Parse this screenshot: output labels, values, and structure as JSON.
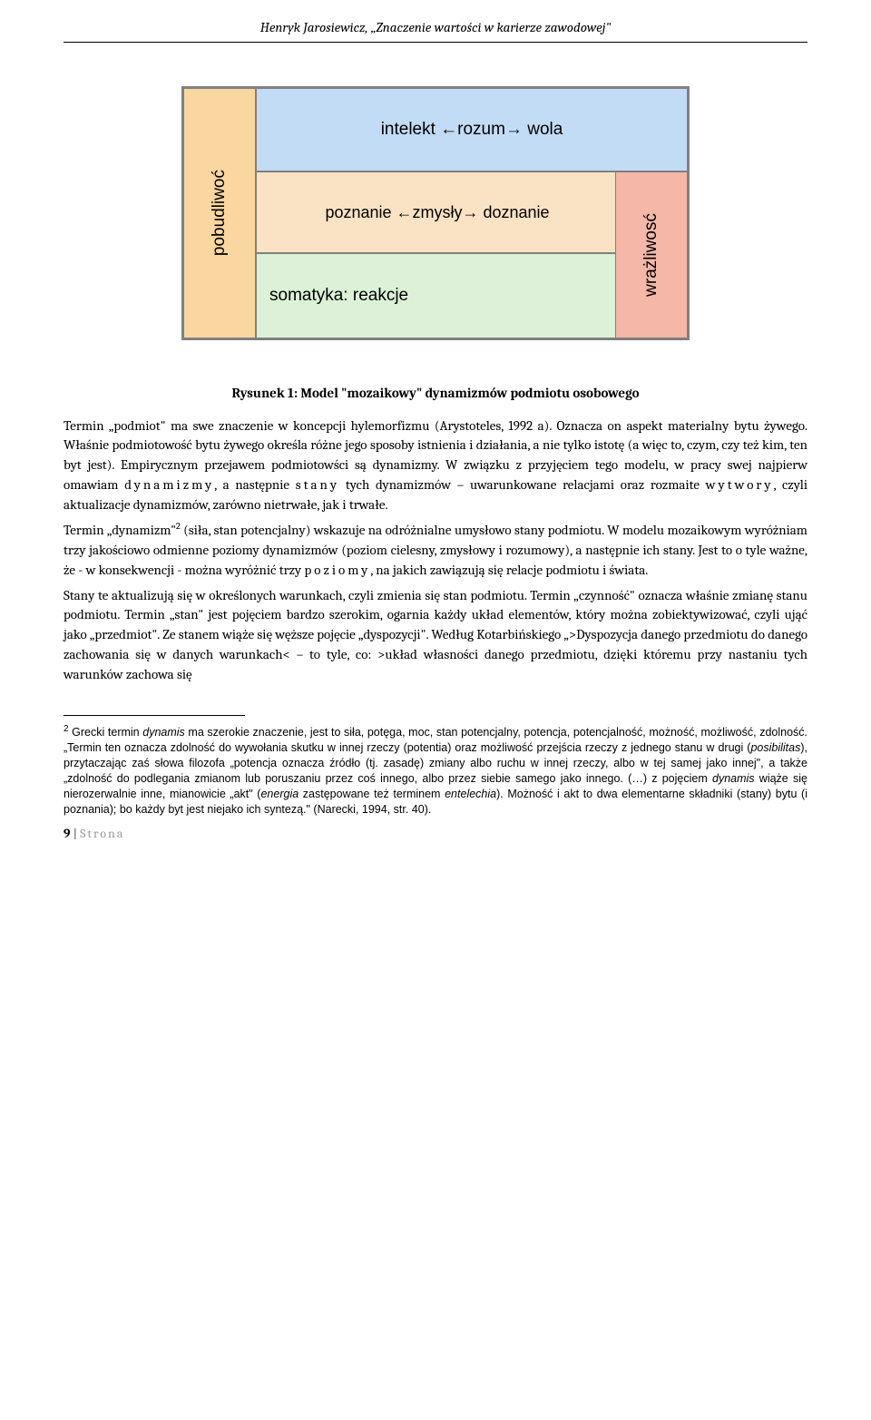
{
  "header": "Henryk Jarosiewicz, „Znaczenie wartości w karierze zawodowej\"",
  "diagram": {
    "boxes": {
      "left": {
        "text": "pobudliwoć",
        "bg": "#fad7a0",
        "vertical": true
      },
      "top": {
        "text": "intelekt ←rozum→ wola",
        "bg": "#c3dcf5"
      },
      "mid": {
        "text": "poznanie ←zmysły→ doznanie",
        "bg": "#fae2c4"
      },
      "bottom": {
        "text": "somatyka: reakcje",
        "bg": "#dcf1d7"
      },
      "right": {
        "text": "wrażliwosć",
        "bg": "#f5b7a8",
        "vertical": true
      }
    },
    "border_color": "#808080"
  },
  "caption": "Rysunek 1: Model \"mozaikowy\" dynamizmów podmiotu osobowego",
  "para1": "Termin „podmiot\" ma swe znaczenie w koncepcji hylemorfizmu (Arystoteles, 1992 a). Oznacza on aspekt materialny bytu żywego. Właśnie podmiotowość bytu żywego określa różne jego sposoby istnienia i działania, a nie tylko istotę (a więc to, czym, czy też kim, ten byt jest). Empirycznym przejawem podmiotowści są dynamizmy. W związku z przyjęciem tego modelu, w pracy swej najpierw omawiam ",
  "para1_sp1": "dynamizmy",
  "para1_b": ", a następnie ",
  "para1_sp2": "stany",
  "para1_c": " tych dynamizmów – uwarunkowane relacjami oraz rozmaite ",
  "para1_sp3": "wytwory",
  "para1_d": ", czyli aktualizacje dynamizmów, zarówno nietrwałe, jak i trwałe.",
  "para2a": "Termin „dynamizm\"",
  "fnref": "2",
  "para2b": " (siła, stan potencjalny) wskazuje na odróżnialne umysłowo stany podmiotu. W modelu mozaikowym wyróżniam trzy jakościowo odmienne poziomy dynamizmów (poziom cielesny, zmysłowy i rozumowy), a następnie ich stany. Jest to o tyle ważne, że - w konsekwencji - można wyróżnić trzy ",
  "para2_sp1": "poziomy",
  "para2c": ", na jakich zawiązują się relacje podmiotu i świata.",
  "para3": "Stany te aktualizują się w określonych warunkach, czyli zmienia się stan podmiotu. Termin „czynność\" oznacza właśnie zmianę stanu podmiotu. Termin „stan\" jest pojęciem bardzo szerokim, ogarnia każdy układ elementów, który można zobiektywizować, czyli ująć jako „przedmiot\". Ze stanem wiąże się węższe pojęcie „dyspozycji\". Według Kotarbińskiego „>Dyspozycja danego przedmiotu do danego zachowania się w danych warunkach< – to tyle, co: >układ własności danego przedmiotu, dzięki któremu przy nastaniu tych warunków zachowa się",
  "footnote": {
    "num": "2",
    "a": " Grecki termin ",
    "i1": "dynamis",
    "b": " ma szerokie znaczenie, jest to siła, potęga, moc, stan potencjalny, potencja, potencjalność, możność, możliwość, zdolność. „Termin ten oznacza zdolność do wywołania skutku w innej rzeczy (potentia) oraz możliwość przejścia rzeczy z jednego stanu w drugi (",
    "i2": "posibilitas",
    "c": "), przytaczając zaś słowa filozofa „potencja oznacza źródło (tj. zasadę) zmiany albo ruchu w innej rzeczy, albo w tej samej jako innej\", a także „zdolność do podlegania zmianom lub poruszaniu przez coś innego, albo przez siebie samego jako innego. (…) z pojęciem ",
    "i3": "dynamis",
    "d": " wiąże się nierozerwalnie inne, mianowicie „akt\" (",
    "i4": "energia",
    "e": " zastępowane też terminem ",
    "i5": "entelechia",
    "f": "). Możność i akt to dwa elementarne składniki (stany) bytu (i poznania); bo każdy byt jest niejako ich syntezą.\" (Narecki, 1994, str. 40)."
  },
  "footer": {
    "page": "9",
    "sep": " | ",
    "label": "Strona"
  }
}
